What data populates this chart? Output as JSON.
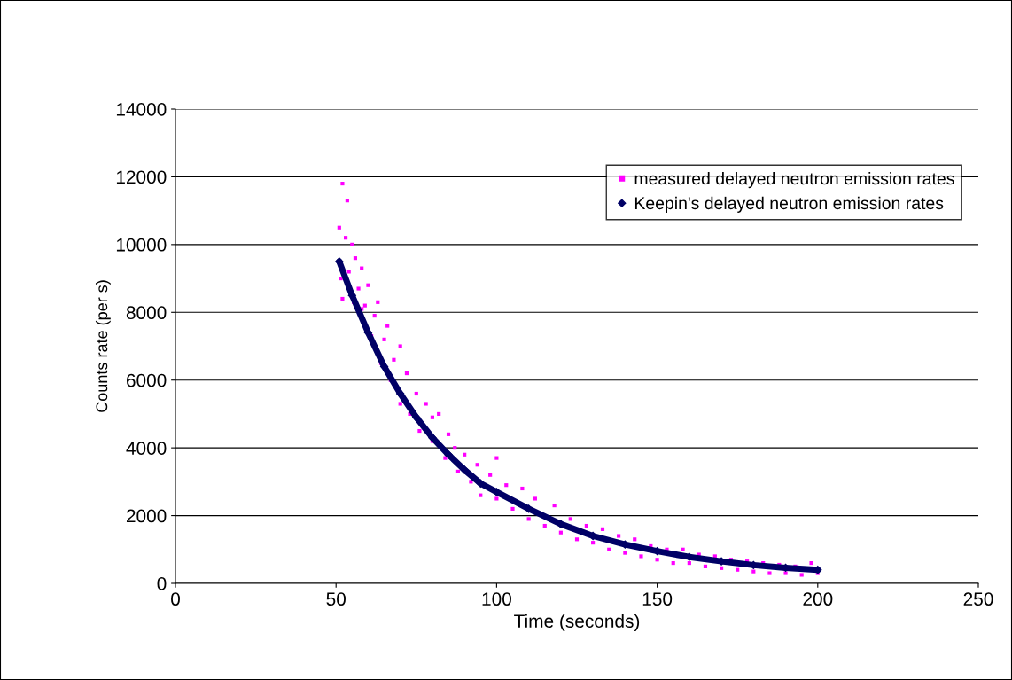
{
  "chart_data": {
    "type": "scatter",
    "xlabel": "Time (seconds)",
    "ylabel": "Counts rate (per s)",
    "xlim": [
      0,
      250
    ],
    "xticks": [
      0,
      50,
      100,
      150,
      200,
      250
    ],
    "ylim": [
      0,
      14000
    ],
    "yticks": [
      0,
      2000,
      4000,
      6000,
      8000,
      10000,
      12000,
      14000
    ],
    "grid": "y",
    "legend": "top right",
    "series": [
      {
        "name": "measured delayed neutron emission rates",
        "marker": "square",
        "color": "#ff00ff",
        "x": [
          51,
          51.5,
          52,
          52,
          53,
          53.5,
          54,
          55,
          55.5,
          56,
          57,
          58,
          58,
          59,
          60,
          61,
          62,
          63,
          64,
          65,
          66,
          67,
          68,
          70,
          70,
          72,
          73,
          75,
          76,
          78,
          80,
          80,
          82,
          84,
          85,
          87,
          88,
          90,
          92,
          94,
          95,
          98,
          100,
          100,
          103,
          105,
          108,
          110,
          112,
          115,
          118,
          120,
          123,
          125,
          128,
          130,
          133,
          135,
          138,
          140,
          143,
          145,
          148,
          150,
          153,
          155,
          158,
          160,
          163,
          165,
          168,
          170,
          173,
          175,
          178,
          180,
          183,
          185,
          188,
          190,
          193,
          195,
          198,
          200
        ],
        "values": [
          10500,
          9000,
          11800,
          8400,
          10200,
          11300,
          9200,
          10000,
          8300,
          9600,
          8700,
          9300,
          8100,
          8200,
          8800,
          7300,
          7900,
          8300,
          6500,
          7200,
          7600,
          6000,
          6600,
          7000,
          5300,
          6200,
          5000,
          5600,
          4500,
          5300,
          4200,
          4900,
          5000,
          3700,
          4400,
          4000,
          3300,
          3800,
          3000,
          3500,
          2600,
          3200,
          2500,
          3700,
          2900,
          2200,
          2800,
          1900,
          2500,
          1700,
          2300,
          1500,
          1900,
          1300,
          1700,
          1200,
          1600,
          1000,
          1400,
          900,
          1300,
          800,
          1100,
          700,
          1000,
          600,
          1000,
          600,
          850,
          500,
          800,
          450,
          700,
          400,
          650,
          350,
          600,
          300,
          550,
          300,
          500,
          250,
          600,
          300
        ]
      },
      {
        "name": "Keepin's delayed neutron emission rates",
        "type": "line",
        "marker": "diamond",
        "color": "#000066",
        "x": [
          51,
          55,
          60,
          65,
          70,
          75,
          80,
          85,
          90,
          95,
          100,
          110,
          120,
          130,
          140,
          150,
          160,
          170,
          180,
          190,
          200
        ],
        "values": [
          9500,
          8500,
          7400,
          6400,
          5600,
          4900,
          4300,
          3800,
          3350,
          2950,
          2700,
          2200,
          1750,
          1400,
          1150,
          950,
          780,
          650,
          540,
          460,
          400
        ]
      }
    ]
  }
}
